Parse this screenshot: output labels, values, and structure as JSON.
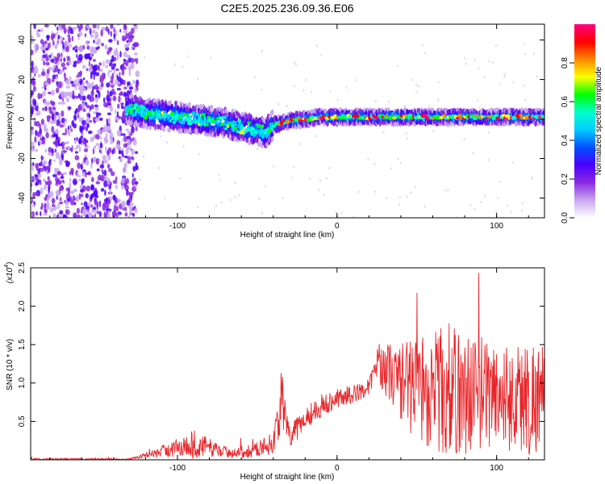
{
  "title": "C2E5.2025.236.09.36.E06",
  "chart_data": [
    {
      "type": "heatmap",
      "xlabel": "Height of straight line (km)",
      "ylabel": "Frequency (Hz)",
      "xlim": [
        -192,
        130
      ],
      "ylim": [
        -50,
        48
      ],
      "xticks": [
        -100,
        0,
        100
      ],
      "xtick_labels": [
        "-100",
        "0",
        "100"
      ],
      "yticks": [
        -40,
        -20,
        0,
        20,
        40
      ],
      "ytick_labels": [
        "-40",
        "-20",
        "0",
        "20",
        "40"
      ],
      "colorbar": {
        "label": "Normalized spectral amplitude",
        "range": [
          0,
          1
        ],
        "ticks": [
          0.0,
          0.2,
          0.4,
          0.6,
          0.8
        ],
        "tick_labels": [
          "0.0",
          "0.2",
          "0.4",
          "0.6",
          "0.8"
        ],
        "colors": [
          "#ffffff",
          "#c9a8f0",
          "#8a2be2",
          "#4b00ff",
          "#0050ff",
          "#00ccff",
          "#00ffcc",
          "#00ff00",
          "#ffff00",
          "#ff8800",
          "#ff0000",
          "#ff007f"
        ]
      },
      "ridge": {
        "x": [
          -130,
          -120,
          -110,
          -100,
          -90,
          -80,
          -70,
          -60,
          -50,
          -45,
          -40,
          -30,
          -20,
          -10,
          0,
          10,
          20,
          40,
          60,
          80,
          100,
          120,
          130
        ],
        "y": [
          5,
          3,
          2,
          1,
          0,
          -1,
          -2,
          -4,
          -6,
          -7,
          -3,
          -1,
          0,
          1,
          1,
          1,
          1,
          1,
          1,
          1,
          1,
          1,
          1
        ]
      },
      "noise_region_end_km": -125
    },
    {
      "type": "line",
      "xlabel": "Height of straight line (km)",
      "ylabel": "SNR (10 * v/v)",
      "scale_label": "(x10",
      "scale_exp": "4",
      "scale_close": ")",
      "xlim": [
        -192,
        130
      ],
      "ylim": [
        0,
        2.5
      ],
      "xticks": [
        -100,
        0,
        100
      ],
      "xtick_labels": [
        "-100",
        "0",
        "100"
      ],
      "yticks": [
        0.5,
        1.0,
        1.5,
        2.0,
        2.5
      ],
      "ytick_labels": [
        "0.5",
        "1.0",
        "1.5",
        "2.0",
        "2.5"
      ],
      "color": "#e8262a",
      "envelope": {
        "x": [
          -192,
          -130,
          -120,
          -110,
          -100,
          -90,
          -80,
          -70,
          -60,
          -50,
          -40,
          -35,
          -30,
          -25,
          -20,
          -10,
          0,
          10,
          20,
          25,
          30,
          40,
          50,
          60,
          70,
          80,
          90,
          100,
          110,
          120,
          130
        ],
        "base": [
          0.01,
          0.01,
          0.06,
          0.1,
          0.16,
          0.2,
          0.16,
          0.1,
          0.1,
          0.14,
          0.22,
          0.75,
          0.3,
          0.4,
          0.55,
          0.7,
          0.8,
          0.85,
          0.95,
          1.25,
          1.2,
          1.0,
          0.95,
          0.9,
          0.9,
          0.85,
          0.9,
          0.85,
          0.8,
          0.8,
          0.85
        ],
        "amp": [
          0.01,
          0.01,
          0.03,
          0.08,
          0.13,
          0.2,
          0.12,
          0.08,
          0.08,
          0.1,
          0.15,
          0.4,
          0.15,
          0.15,
          0.15,
          0.15,
          0.12,
          0.12,
          0.1,
          0.2,
          0.35,
          0.5,
          0.7,
          0.8,
          0.9,
          0.8,
          0.75,
          0.7,
          0.7,
          0.8,
          0.7
        ]
      }
    }
  ]
}
